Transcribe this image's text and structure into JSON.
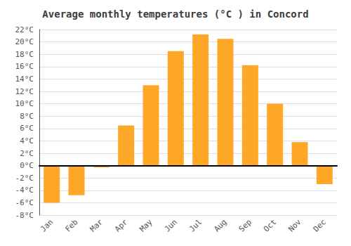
{
  "chart_data": {
    "type": "bar",
    "title": "Average monthly temperatures (°C ) in Concord",
    "categories": [
      "Jan",
      "Feb",
      "Mar",
      "Apr",
      "May",
      "Jun",
      "Jul",
      "Aug",
      "Sep",
      "Oct",
      "Nov",
      "Dec"
    ],
    "values": [
      -6.0,
      -4.8,
      -0.3,
      6.5,
      13.0,
      18.5,
      21.2,
      20.5,
      16.2,
      10.0,
      3.8,
      -3.0
    ],
    "color": "#FFA726",
    "ylim": [
      -8,
      22
    ],
    "yticks": [
      {
        "value": -8,
        "label": "-8°C"
      },
      {
        "value": -6,
        "label": "-6°C"
      },
      {
        "value": -4,
        "label": "-4°C"
      },
      {
        "value": -2,
        "label": "-2°C"
      },
      {
        "value": 0,
        "label": "0°C"
      },
      {
        "value": 2,
        "label": "2°C"
      },
      {
        "value": 4,
        "label": "4°C"
      },
      {
        "value": 6,
        "label": "6°C"
      },
      {
        "value": 8,
        "label": "8°C"
      },
      {
        "value": 10,
        "label": "10°C"
      },
      {
        "value": 12,
        "label": "12°C"
      },
      {
        "value": 14,
        "label": "14°C"
      },
      {
        "value": 16,
        "label": "16°C"
      },
      {
        "value": 18,
        "label": "18°C"
      },
      {
        "value": 20,
        "label": "20°C"
      },
      {
        "value": 22,
        "label": "22°C"
      }
    ],
    "grid": true
  }
}
